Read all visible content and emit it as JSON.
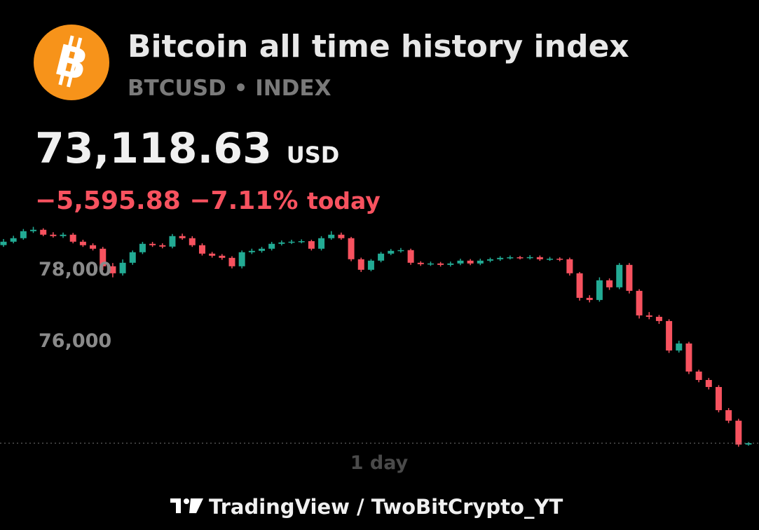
{
  "header": {
    "logo": "B",
    "title": "Bitcoin all time history index",
    "symbol": "BTCUSD",
    "separator": "•",
    "market": "INDEX",
    "price": "73,118.63",
    "currency": "USD",
    "change": "−5,595.88",
    "change_percent": "−7.11%",
    "period": "today"
  },
  "chart_data": {
    "type": "candlestick",
    "up_color": "#22ab94",
    "down_color": "#f7525f",
    "ylim": [
      72770,
      79230
    ],
    "yticks": [
      {
        "value": 76000,
        "label": "76,000"
      },
      {
        "value": 78000,
        "label": "78,000"
      }
    ],
    "timeframe": "1 day",
    "open": [
      78650,
      78745,
      78843,
      79039,
      79078,
      78941,
      78902,
      78941,
      78745,
      78647,
      78549,
      78059,
      77863,
      78157,
      78451,
      78686,
      78647,
      78608,
      78902,
      78843,
      78647,
      78412,
      78353,
      78294,
      78059,
      78451,
      78490,
      78549,
      78686,
      78725,
      78745,
      78760,
      78549,
      78843,
      78941,
      78843,
      78255,
      77961,
      78216,
      78412,
      78490,
      78510,
      78157,
      78118,
      78137,
      78098,
      78137,
      78216,
      78137,
      78216,
      78255,
      78294,
      78310,
      78294,
      78314,
      78255,
      78270,
      78255,
      77863,
      77177,
      77118,
      77667,
      77471,
      78098,
      77373,
      76687,
      76648,
      76530,
      75707,
      75903,
      75119,
      74884,
      74688,
      74041,
      73747,
      73080
    ],
    "high": [
      78820,
      78910,
      79100,
      79160,
      79120,
      79010,
      79000,
      78990,
      78800,
      78700,
      78600,
      78150,
      78250,
      78500,
      78740,
      78740,
      78700,
      78960,
      78970,
      78900,
      78700,
      78460,
      78400,
      78340,
      78500,
      78550,
      78600,
      78740,
      78780,
      78800,
      78810,
      78800,
      78900,
      79040,
      79000,
      78880,
      78300,
      78260,
      78460,
      78540,
      78570,
      78550,
      78200,
      78190,
      78180,
      78190,
      78270,
      78260,
      78270,
      78300,
      78340,
      78360,
      78350,
      78370,
      78360,
      78320,
      78310,
      78300,
      77900,
      77250,
      77750,
      77720,
      78150,
      78150,
      77420,
      76780,
      76700,
      76580,
      75980,
      75950,
      75170,
      74940,
      74740,
      74100,
      73800,
      73150
    ],
    "low": [
      78600,
      78700,
      78800,
      78990,
      78900,
      78860,
      78850,
      78700,
      78600,
      78500,
      77950,
      77750,
      77800,
      78100,
      78400,
      78600,
      78560,
      78560,
      78800,
      78600,
      78360,
      78300,
      78240,
      78000,
      78000,
      78400,
      78440,
      78500,
      78640,
      78680,
      78700,
      78500,
      78500,
      78800,
      78800,
      78200,
      77900,
      77920,
      78170,
      78370,
      78440,
      78100,
      78070,
      78070,
      78050,
      78050,
      78090,
      78090,
      78090,
      78170,
      78210,
      78250,
      78250,
      78250,
      78210,
      78210,
      78200,
      77800,
      77100,
      77050,
      77070,
      77400,
      77420,
      77300,
      76600,
      76580,
      76450,
      75640,
      75650,
      75050,
      74820,
      74620,
      73980,
      73680,
      73020,
      73050
    ],
    "close": [
      78745,
      78843,
      79039,
      79078,
      78941,
      78902,
      78941,
      78745,
      78647,
      78549,
      78059,
      77863,
      78157,
      78451,
      78686,
      78647,
      78608,
      78902,
      78843,
      78647,
      78412,
      78353,
      78294,
      78059,
      78451,
      78490,
      78549,
      78686,
      78725,
      78745,
      78760,
      78549,
      78843,
      78941,
      78843,
      78255,
      77961,
      78216,
      78412,
      78490,
      78510,
      78157,
      78118,
      78137,
      78098,
      78137,
      78216,
      78137,
      78216,
      78255,
      78294,
      78310,
      78294,
      78314,
      78255,
      78270,
      78255,
      77863,
      77177,
      77118,
      77667,
      77471,
      78098,
      77373,
      76687,
      76648,
      76530,
      75707,
      75903,
      75119,
      74884,
      74688,
      74041,
      73747,
      73080,
      73119
    ]
  },
  "footer": {
    "brand": "TradingView",
    "separator": "/",
    "author": "TwoBitCrypto_YT"
  }
}
